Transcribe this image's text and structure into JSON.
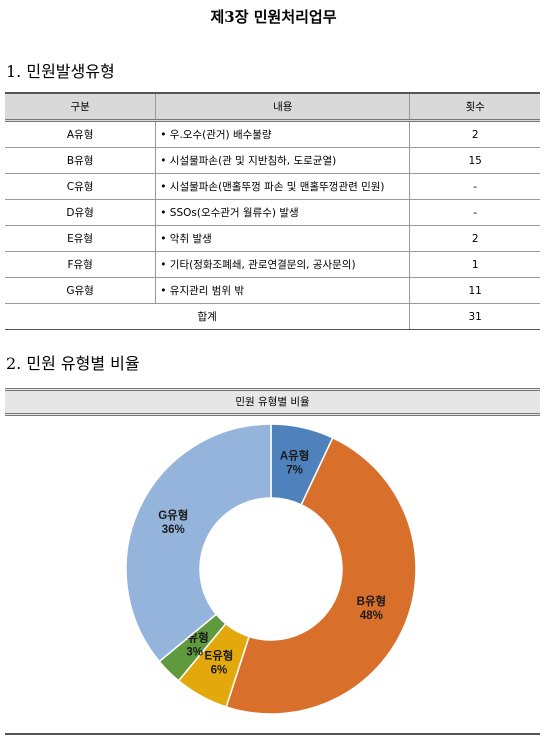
{
  "title": "제3장 민원처리업무",
  "section1": {
    "heading": "1. 민원발생유형",
    "table": {
      "columns": [
        "구분",
        "내용",
        "횟수"
      ],
      "rows": [
        [
          "A유형",
          "• 우.오수(관거) 배수불량",
          "2"
        ],
        [
          "B유형",
          "• 시설물파손(관 및 지반침하, 도로균열)",
          "15"
        ],
        [
          "C유형",
          "• 시설물파손(맨홀뚜껑 파손 및 맨홀뚜껑관련 민원)",
          "-"
        ],
        [
          "D유형",
          "• SSOs(오수관거 월류수) 발생",
          "-"
        ],
        [
          "E유형",
          "• 악취 발생",
          "2"
        ],
        [
          "F유형",
          "• 기타(정화조폐쇄, 관로연결문의, 공사문의)",
          "1"
        ],
        [
          "G유형",
          "• 유지관리 범위 밖",
          "11"
        ]
      ],
      "total": [
        "합계",
        "31"
      ]
    }
  },
  "section2": {
    "heading": "2. 민원 유형별 비율"
  },
  "chart_data": {
    "type": "donut",
    "title": "민원 유형별 비율",
    "categories": [
      "A유형",
      "B유형",
      "E유형",
      "F유형",
      "G유형"
    ],
    "values": [
      7,
      48,
      6,
      3,
      36
    ],
    "value_labels": [
      "7%",
      "48%",
      "6%",
      "3%",
      "36%"
    ],
    "colors": [
      "#4f81bd",
      "#d8702c",
      "#e3a90c",
      "#5f9a3f",
      "#95b4dc"
    ]
  }
}
